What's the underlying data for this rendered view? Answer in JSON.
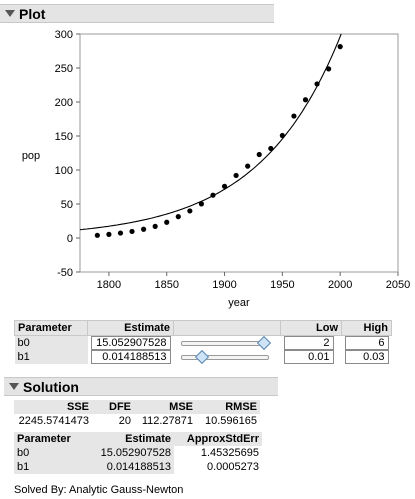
{
  "plot_section": {
    "title": "Plot"
  },
  "chart_data": {
    "type": "scatter",
    "xlabel": "year",
    "ylabel": "pop",
    "xlim": [
      1775,
      2050
    ],
    "ylim": [
      -50,
      300
    ],
    "x_ticks": [
      "1800",
      "1850",
      "1900",
      "1950",
      "2000",
      "2050"
    ],
    "y_ticks": [
      "-50",
      "0",
      "50",
      "100",
      "150",
      "200",
      "250",
      "300"
    ],
    "points": {
      "x": [
        1790,
        1800,
        1810,
        1820,
        1830,
        1840,
        1850,
        1860,
        1870,
        1880,
        1890,
        1900,
        1910,
        1920,
        1930,
        1940,
        1950,
        1960,
        1970,
        1980,
        1990,
        2000
      ],
      "y": [
        3.929,
        5.308,
        7.24,
        9.638,
        12.866,
        17.069,
        23.192,
        31.443,
        39.818,
        50.156,
        62.948,
        75.995,
        91.972,
        105.711,
        122.775,
        131.669,
        150.697,
        179.323,
        203.302,
        226.542,
        248.71,
        281.422
      ]
    },
    "model_curve": {
      "formula": "b0*exp(b1*(year-1790))",
      "b0": 15.052907528,
      "b1": 0.014188513
    },
    "grid": false
  },
  "params": {
    "headers": [
      "Parameter",
      "Estimate",
      "Low",
      "High"
    ],
    "rows": [
      {
        "name": "b0",
        "estimate": "15.052907528",
        "slider_value": 0.98,
        "low": "2",
        "high": "6"
      },
      {
        "name": "b1",
        "estimate": "0.014188513",
        "slider_value": 0.2,
        "low": "0.01",
        "high": "0.03"
      }
    ]
  },
  "solution_section": {
    "title": "Solution"
  },
  "fit_stats": {
    "headers": [
      "SSE",
      "DFE",
      "MSE",
      "RMSE"
    ],
    "values": [
      "2245.5741473",
      "20",
      "112.27871",
      "10.596165"
    ]
  },
  "estimates": {
    "headers": [
      "Parameter",
      "Estimate",
      "ApproxStdErr"
    ],
    "rows": [
      {
        "name": "b0",
        "estimate": "15.052907528",
        "stderr": "1.45325695"
      },
      {
        "name": "b1",
        "estimate": "0.014188513",
        "stderr": "0.0005273"
      }
    ]
  },
  "footer": "Solved By: Analytic Gauss-Newton",
  "colors": {
    "header_bg": "#e4e4e4",
    "slider_thumb": "#cfe3f7"
  }
}
